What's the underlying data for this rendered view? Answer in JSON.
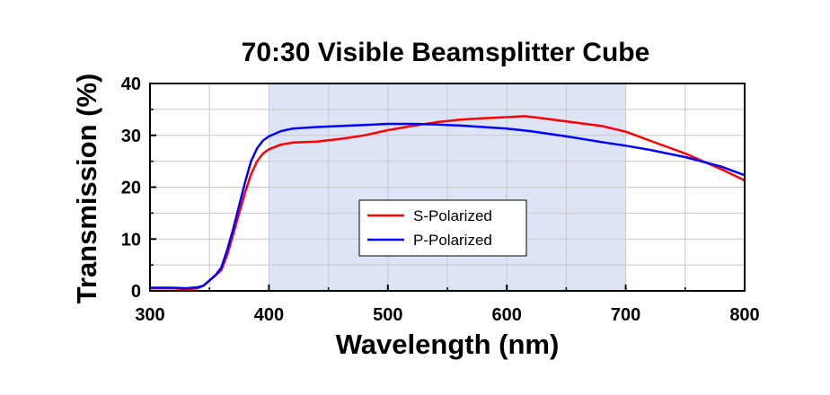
{
  "chart_data": {
    "type": "line",
    "title": "70:30 Visible Beamsplitter Cube",
    "xlabel": "Wavelength (nm)",
    "ylabel": "Transmission (%)",
    "xlim": [
      300,
      800
    ],
    "ylim": [
      0,
      40
    ],
    "xticks": [
      "300",
      "400",
      "500",
      "600",
      "700",
      "800"
    ],
    "yticks": [
      "0",
      "10",
      "20",
      "30",
      "40"
    ],
    "grid": true,
    "legend_position": "center",
    "shaded_region": {
      "x_start": 400,
      "x_end": 700,
      "color": "#dce4f5"
    },
    "series": [
      {
        "name": "S-Polarized",
        "color": "#ff0000",
        "x": [
          300,
          320,
          330,
          340,
          345,
          350,
          355,
          360,
          365,
          370,
          375,
          380,
          385,
          390,
          395,
          400,
          410,
          420,
          440,
          460,
          480,
          500,
          520,
          540,
          560,
          580,
          600,
          615,
          630,
          650,
          680,
          700,
          720,
          750,
          780,
          800
        ],
        "y": [
          0.5,
          0.5,
          0.3,
          0.5,
          1.0,
          2.0,
          3.0,
          4.0,
          7.0,
          11.0,
          15.0,
          19.0,
          22.5,
          25.0,
          26.5,
          27.3,
          28.2,
          28.6,
          28.8,
          29.3,
          30.0,
          31.0,
          31.8,
          32.5,
          33.0,
          33.3,
          33.5,
          33.7,
          33.3,
          32.7,
          31.8,
          30.7,
          29.0,
          26.5,
          23.5,
          21.3
        ]
      },
      {
        "name": "P-Polarized",
        "color": "#0000ff",
        "x": [
          300,
          320,
          330,
          340,
          345,
          350,
          355,
          360,
          365,
          370,
          375,
          380,
          385,
          390,
          395,
          400,
          410,
          420,
          440,
          460,
          480,
          500,
          520,
          540,
          560,
          580,
          600,
          620,
          650,
          680,
          700,
          720,
          750,
          780,
          800
        ],
        "y": [
          0.6,
          0.6,
          0.5,
          0.7,
          1.0,
          2.0,
          3.0,
          4.5,
          8.0,
          12.0,
          16.5,
          21.0,
          25.0,
          27.5,
          29.0,
          29.8,
          30.8,
          31.3,
          31.6,
          31.8,
          32.0,
          32.2,
          32.2,
          32.1,
          31.9,
          31.6,
          31.3,
          30.8,
          29.8,
          28.7,
          28.0,
          27.2,
          25.8,
          24.0,
          22.3
        ]
      }
    ]
  }
}
